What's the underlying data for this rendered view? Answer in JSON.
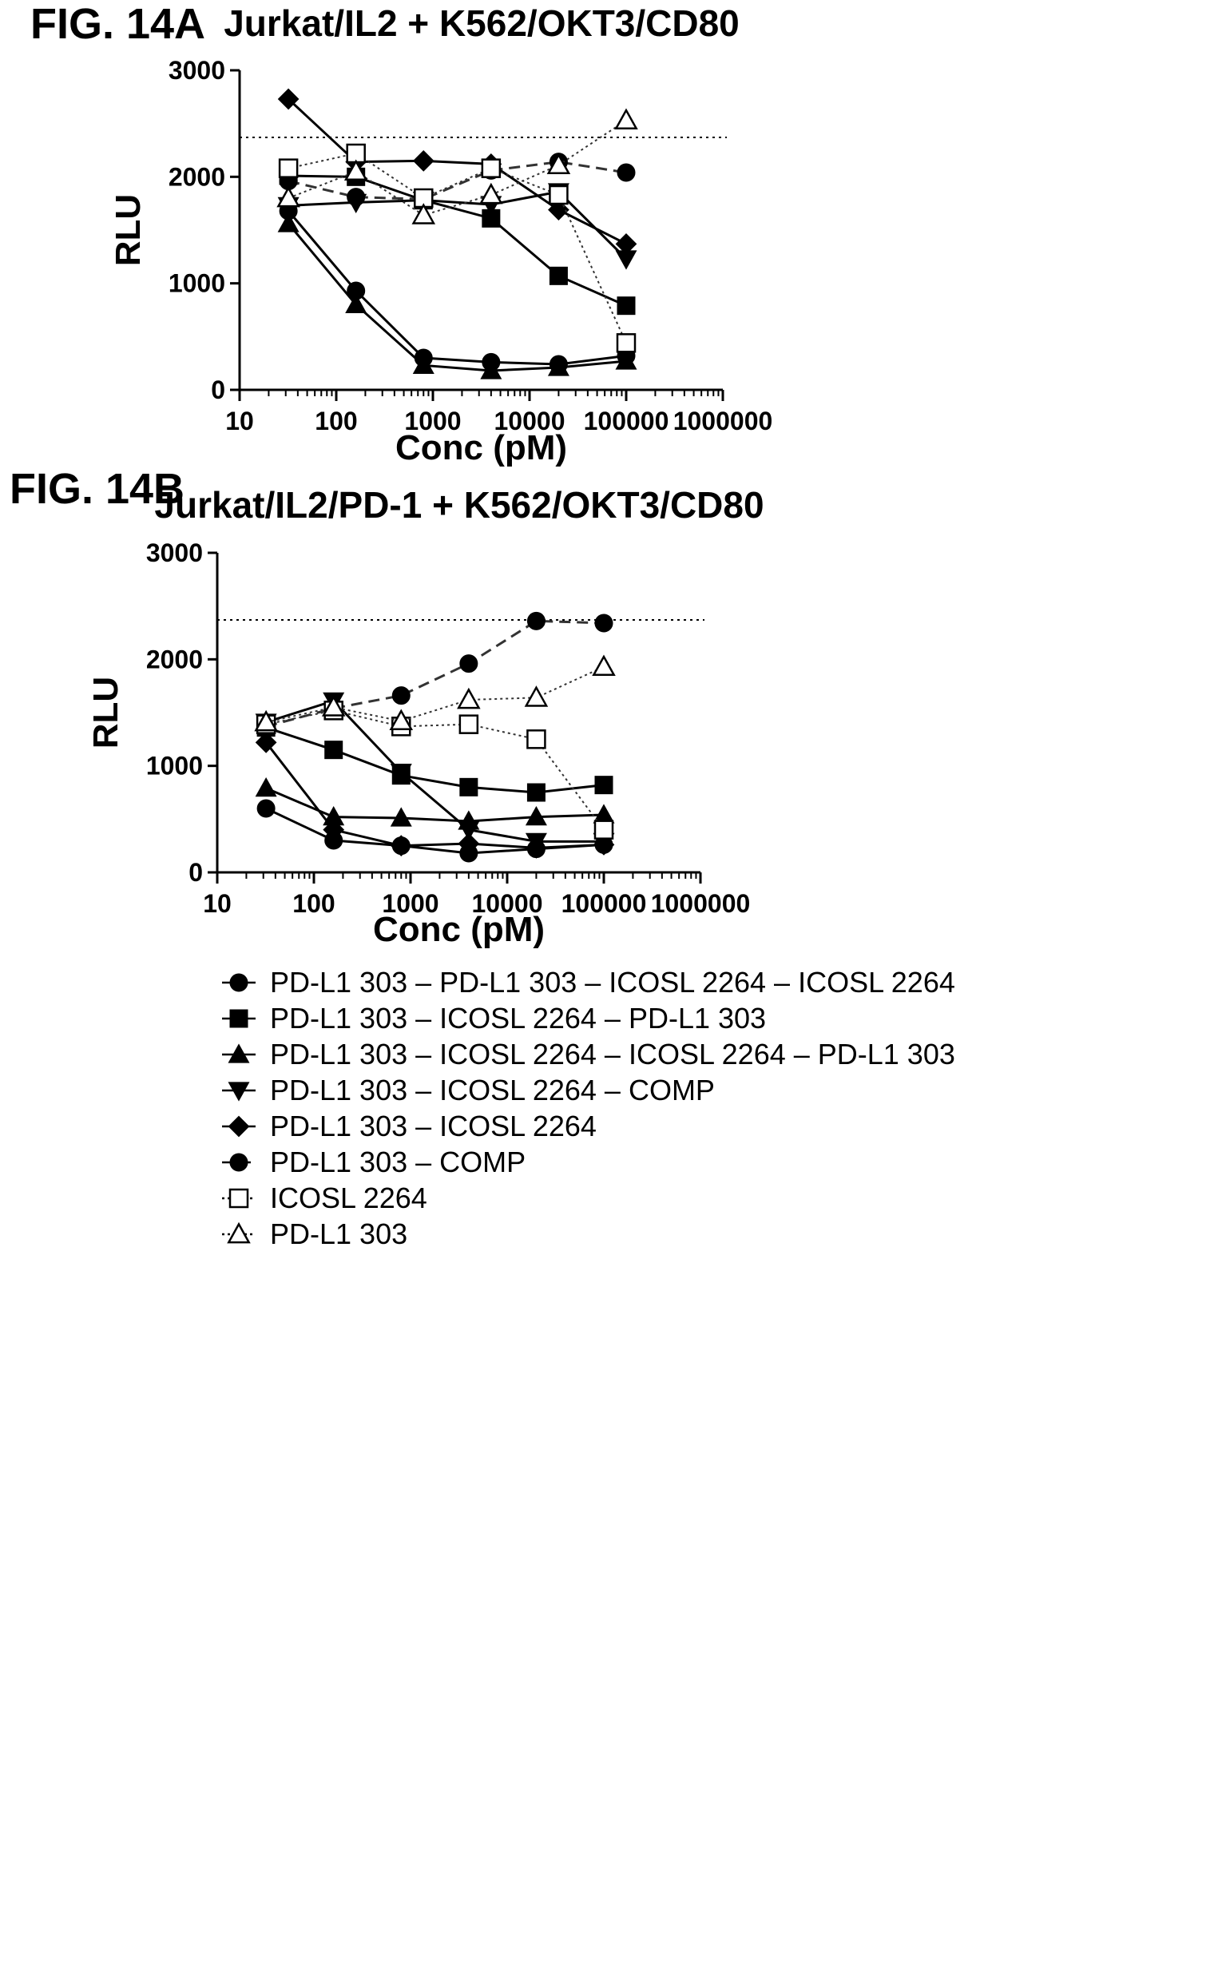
{
  "legend": [
    {
      "label": "PD-L1 303 – PD-L1 303 – ICOSL 2264 – ICOSL 2264",
      "marker": "circle",
      "filled": true,
      "line": "solid"
    },
    {
      "label": "PD-L1 303 – ICOSL 2264  – PD-L1 303",
      "marker": "square",
      "filled": true,
      "line": "solid"
    },
    {
      "label": "PD-L1 303  – ICOSL 2264 – ICOSL 2264  – PD-L1 303",
      "marker": "triangle-up",
      "filled": true,
      "line": "solid"
    },
    {
      "label": "PD-L1 303 – ICOSL 2264 – COMP",
      "marker": "triangle-down",
      "filled": true,
      "line": "solid"
    },
    {
      "label": "PD-L1 303 – ICOSL 2264",
      "marker": "diamond",
      "filled": true,
      "line": "solid"
    },
    {
      "label": "PD-L1 303 – COMP",
      "marker": "circle",
      "filled": true,
      "line": "dashed"
    },
    {
      "label": "ICOSL 2264",
      "marker": "square",
      "filled": false,
      "line": "dotted"
    },
    {
      "label": "PD-L1 303",
      "marker": "triangle-up",
      "filled": false,
      "line": "dotted"
    }
  ],
  "chart_data": [
    {
      "figure_label": "FIG. 14A",
      "type": "line",
      "title": "Jurkat/IL2 + K562/OKT3/CD80",
      "xlabel": "Conc (pM)",
      "ylabel": "RLU",
      "xscale": "log",
      "xlim": [
        10,
        1000000
      ],
      "ylim": [
        0,
        3000
      ],
      "xticks": [
        "10",
        "100",
        "1000",
        "10000",
        "100000",
        "1000000"
      ],
      "yticks": [
        "0",
        "1000",
        "2000",
        "3000"
      ],
      "reference_line": 2370,
      "x": [
        32,
        160,
        800,
        4000,
        20000,
        100000
      ],
      "series": [
        {
          "values": [
            1680,
            930,
            300,
            260,
            240,
            320
          ]
        },
        {
          "values": [
            2010,
            2000,
            1780,
            1610,
            1070,
            790
          ]
        },
        {
          "values": [
            1560,
            800,
            230,
            180,
            210,
            270
          ]
        },
        {
          "values": [
            1730,
            1760,
            1780,
            1740,
            1860,
            1230
          ]
        },
        {
          "values": [
            2730,
            2140,
            2150,
            2120,
            1690,
            1370
          ]
        },
        {
          "values": [
            1960,
            1810,
            1790,
            2060,
            2140,
            2040
          ]
        },
        {
          "values": [
            2080,
            2220,
            1800,
            2080,
            1830,
            440
          ]
        },
        {
          "values": [
            1800,
            2050,
            1640,
            1830,
            2110,
            2530
          ]
        }
      ]
    },
    {
      "figure_label": "FIG. 14B",
      "type": "line",
      "title": "Jurkat/IL2/PD-1 + K562/OKT3/CD80",
      "xlabel": "Conc (pM)",
      "ylabel": "RLU",
      "xscale": "log",
      "xlim": [
        10,
        1000000
      ],
      "ylim": [
        0,
        3000
      ],
      "xticks": [
        "10",
        "100",
        "1000",
        "10000",
        "100000",
        "1000000"
      ],
      "yticks": [
        "0",
        "1000",
        "2000",
        "3000"
      ],
      "reference_line": 2370,
      "x": [
        32,
        160,
        800,
        4000,
        20000,
        100000
      ],
      "series": [
        {
          "values": [
            600,
            300,
            250,
            180,
            220,
            260
          ]
        },
        {
          "values": [
            1360,
            1150,
            910,
            800,
            750,
            820
          ]
        },
        {
          "values": [
            790,
            520,
            510,
            480,
            520,
            540
          ]
        },
        {
          "values": [
            1410,
            1610,
            940,
            400,
            290,
            290
          ]
        },
        {
          "values": [
            1220,
            400,
            250,
            270,
            230,
            260
          ]
        },
        {
          "values": [
            1370,
            1540,
            1660,
            1960,
            2360,
            2340
          ]
        },
        {
          "values": [
            1390,
            1520,
            1370,
            1390,
            1250,
            400
          ]
        },
        {
          "values": [
            1410,
            1550,
            1420,
            1620,
            1640,
            1930
          ]
        }
      ]
    }
  ]
}
